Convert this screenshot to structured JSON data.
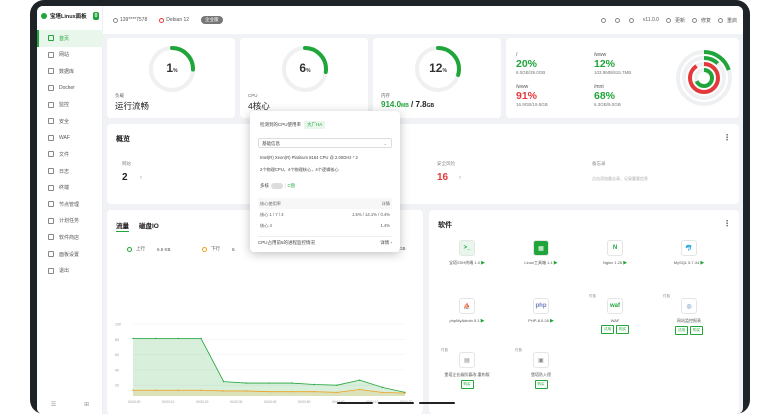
{
  "brand": {
    "name": "宝塔Linux面板",
    "badge": "0"
  },
  "sidebar": {
    "items": [
      {
        "label": "首页",
        "active": true
      },
      {
        "label": "网站"
      },
      {
        "label": "数据库"
      },
      {
        "label": "Docker"
      },
      {
        "label": "监控"
      },
      {
        "label": "安全"
      },
      {
        "label": "WAF"
      },
      {
        "label": "文件"
      },
      {
        "label": "日志"
      },
      {
        "label": "终端"
      },
      {
        "label": "节点管理"
      },
      {
        "label": "计划任务"
      },
      {
        "label": "软件商店"
      },
      {
        "label": "面板设置"
      },
      {
        "label": "退出"
      }
    ],
    "bottom_icons": [
      "☰",
      "⊞"
    ]
  },
  "topbar": {
    "user": "139****7578",
    "os": "Debian 12",
    "os_badge": "企业版",
    "version": "v11.0.0",
    "buttons": [
      "更新",
      "修复",
      "重启"
    ]
  },
  "status": {
    "load": {
      "label": "负载",
      "value": "运行流畅",
      "percent": "1",
      "level": 0.01
    },
    "cpu": {
      "label": "CPU",
      "value": "4核心",
      "percent": "6",
      "level": 0.06
    },
    "ram": {
      "label": "内存",
      "value_used": "914.0",
      "value_used_unit": "MB",
      "value_total": "7.8",
      "value_total_unit": "GB",
      "percent": "12",
      "level": 0.12
    }
  },
  "disks": [
    {
      "mount": "/",
      "percent": "20%",
      "size": "8.0GB/39.0GB",
      "red": false
    },
    {
      "mount": "/www",
      "percent": "12%",
      "size": "103.8MB/815.7MB",
      "red": false
    },
    {
      "mount": "/www",
      "percent": "91%",
      "size": "16.9GB/19.5GB",
      "red": true
    },
    {
      "mount": "/mnt",
      "percent": "68%",
      "size": "6.3GB/9.0GB",
      "red": false
    }
  ],
  "overview": {
    "title": "概览",
    "items": [
      {
        "label": "网站",
        "value": "2",
        "red": false
      },
      {
        "label": "安全风险",
        "value": "16",
        "red": true
      },
      {
        "label": "备忘录",
        "value": "点击添加备忘录，记录重要信息",
        "red": false
      }
    ]
  },
  "traffic": {
    "tabs": [
      "流量",
      "磁盘IO"
    ],
    "legend": [
      {
        "label": "上行",
        "value": "6.5 KB"
      },
      {
        "label": "下行",
        "value": "8."
      },
      {
        "label": "",
        "value": "GB"
      }
    ],
    "y_labels": [
      "100",
      "80",
      "60",
      "40",
      "20"
    ],
    "x_labels": [
      "00:00:00",
      "00:00:10",
      "00:00:20",
      "00:00:30",
      "00:00:40",
      "00:00:50",
      "00:01:00",
      "00:01:10",
      "00:01:20"
    ]
  },
  "chart_data": {
    "type": "area",
    "x": [
      0,
      1,
      2,
      3,
      4,
      5,
      6,
      7,
      8,
      9,
      10,
      11,
      12
    ],
    "series": [
      {
        "name": "上行",
        "values": [
          80,
          80,
          80,
          80,
          20,
          18,
          18,
          18,
          16,
          15,
          22,
          12,
          5
        ]
      },
      {
        "name": "下行",
        "values": [
          8,
          8,
          8,
          8,
          7,
          7,
          6,
          6,
          6,
          5,
          9,
          5,
          4
        ]
      }
    ],
    "ylim": [
      0,
      100
    ],
    "grid": true
  },
  "software": {
    "title": "软件",
    "apps": [
      {
        "name": "宝塔SSH终端 1.0",
        "tag": "",
        "btns": [],
        "icon_bg": "#e8f6eb",
        "icon_fg": "#20a53a",
        "glyph": ">_"
      },
      {
        "name": "Linux工具箱 1.1",
        "tag": "",
        "btns": [],
        "icon_bg": "#20a53a",
        "icon_fg": "#fff",
        "glyph": "▦"
      },
      {
        "name": "Nginx 1.26",
        "tag": "",
        "btns": [],
        "icon_bg": "#fff",
        "icon_fg": "#20a53a",
        "glyph": "N"
      },
      {
        "name": "MySQL 5.7.44",
        "tag": "",
        "btns": [],
        "icon_bg": "#fff",
        "icon_fg": "#3a7abf",
        "glyph": "🐬"
      },
      {
        "name": "phpMyAdmin 5.1",
        "tag": "",
        "btns": [],
        "icon_bg": "#fff",
        "icon_fg": "#f0a020",
        "glyph": "⛵"
      },
      {
        "name": "PHP-8.0.26",
        "tag": "",
        "btns": [],
        "icon_bg": "#fff",
        "icon_fg": "#6c7eb7",
        "glyph": "php"
      },
      {
        "name": "WAF",
        "tag": "付费",
        "btns": [
          "试用",
          "购买"
        ],
        "icon_bg": "#fff",
        "icon_fg": "#20a53a",
        "glyph": "waf"
      },
      {
        "name": "网站监控报表",
        "tag": "付费",
        "btns": [
          "试用",
          "购买"
        ],
        "icon_bg": "#fff",
        "icon_fg": "#3a7abf",
        "glyph": "◎"
      },
      {
        "name": "堡塔企业级防篡改-重构版",
        "tag": "付费",
        "btns": [
          "购买"
        ],
        "icon_bg": "#fff",
        "icon_fg": "#888",
        "glyph": "▤"
      },
      {
        "name": "堡塔防入侵",
        "tag": "付费",
        "btns": [
          "购买"
        ],
        "icon_bg": "#fff",
        "icon_fg": "#888",
        "glyph": "▣"
      }
    ]
  },
  "cpu_popup": {
    "title": "检测到的CPU使用率",
    "title_tag": "大厂HA",
    "select": "基础信息",
    "model": "Intel(R) Xeon(R) Platinum 8164 CPU @ 2.00GHz * 2",
    "detail": "2个物理CPU，4个物理核心，4个逻辑核心",
    "toggle_label": "多核",
    "toggle_right": "C盘",
    "table_head": [
      "核心使用率",
      "详情"
    ],
    "rows": [
      {
        "name": "核心 1 / 7 / 3",
        "value": "1.5% / 14.1% / 0.4%"
      },
      {
        "name": "核心 4",
        "value": "1.4%"
      }
    ],
    "footer_left": "CPU占用前5的进程监控情况",
    "footer_right": "详情 ›"
  },
  "colors": {
    "accent": "#20a53a",
    "danger": "#e4393c",
    "orange": "#f0a020"
  }
}
